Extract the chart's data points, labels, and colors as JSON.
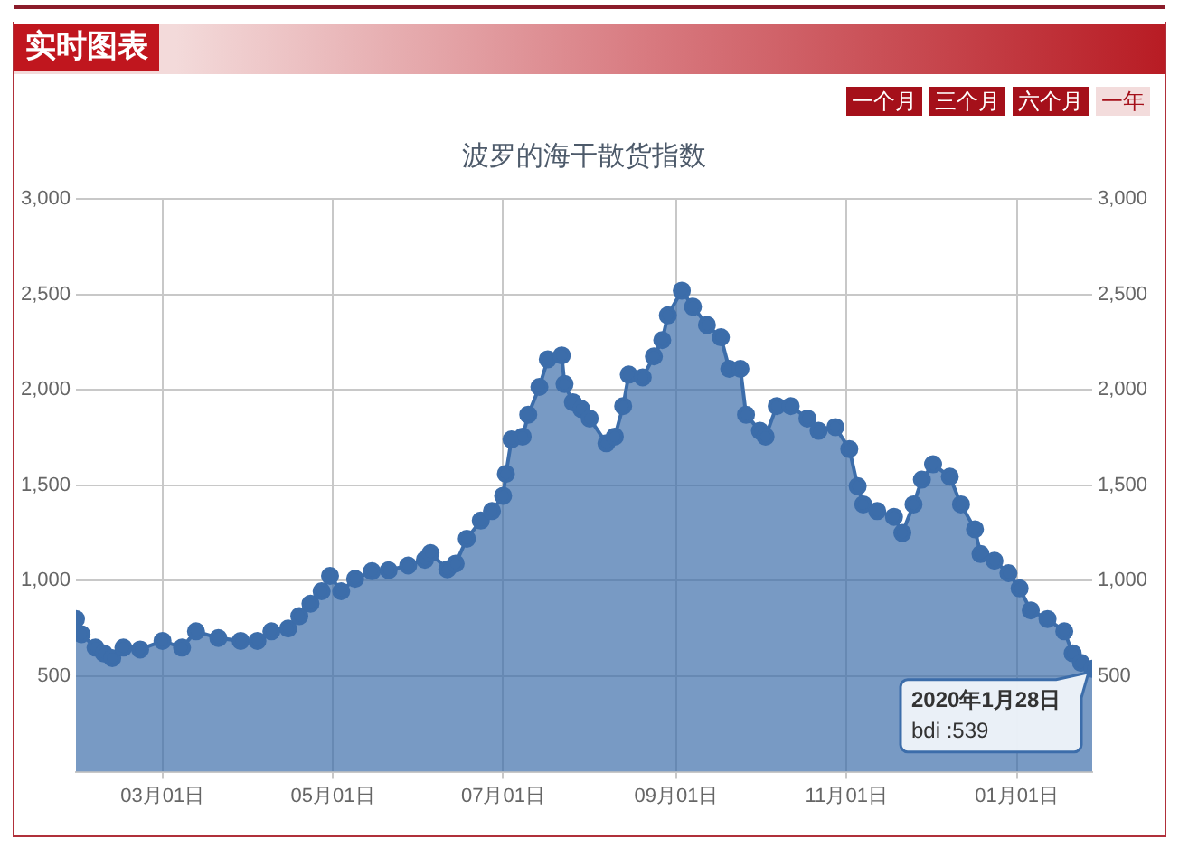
{
  "chart_data": {
    "type": "area",
    "title": "波罗的海干散货指数",
    "x": [
      "2019-01-29",
      "2019-01-31",
      "2019-02-05",
      "2019-02-08",
      "2019-02-11",
      "2019-02-15",
      "2019-02-21",
      "2019-03-01",
      "2019-03-08",
      "2019-03-13",
      "2019-03-21",
      "2019-03-29",
      "2019-04-04",
      "2019-04-09",
      "2019-04-15",
      "2019-04-19",
      "2019-04-23",
      "2019-04-27",
      "2019-04-30",
      "2019-05-04",
      "2019-05-09",
      "2019-05-15",
      "2019-05-21",
      "2019-05-28",
      "2019-06-03",
      "2019-06-05",
      "2019-06-11",
      "2019-06-14",
      "2019-06-18",
      "2019-06-23",
      "2019-06-27",
      "2019-07-01",
      "2019-07-02",
      "2019-07-04",
      "2019-07-08",
      "2019-07-10",
      "2019-07-14",
      "2019-07-17",
      "2019-07-22",
      "2019-07-23",
      "2019-07-26",
      "2019-07-29",
      "2019-08-01",
      "2019-08-07",
      "2019-08-10",
      "2019-08-13",
      "2019-08-15",
      "2019-08-20",
      "2019-08-24",
      "2019-08-27",
      "2019-08-29",
      "2019-09-03",
      "2019-09-07",
      "2019-09-12",
      "2019-09-17",
      "2019-09-20",
      "2019-09-24",
      "2019-09-26",
      "2019-10-01",
      "2019-10-03",
      "2019-10-07",
      "2019-10-12",
      "2019-10-18",
      "2019-10-22",
      "2019-10-28",
      "2019-11-02",
      "2019-11-05",
      "2019-11-07",
      "2019-11-12",
      "2019-11-18",
      "2019-11-21",
      "2019-11-25",
      "2019-11-28",
      "2019-12-02",
      "2019-12-08",
      "2019-12-12",
      "2019-12-17",
      "2019-12-19",
      "2019-12-24",
      "2019-12-29",
      "2020-01-02",
      "2020-01-06",
      "2020-01-12",
      "2020-01-18",
      "2020-01-21",
      "2020-01-24",
      "2020-01-28"
    ],
    "series": [
      {
        "color": "#3c6daa",
        "values": [
          800,
          720,
          650,
          620,
          595,
          650,
          640,
          685,
          650,
          735,
          700,
          685,
          685,
          735,
          750,
          815,
          880,
          945,
          1025,
          945,
          1010,
          1050,
          1055,
          1080,
          1110,
          1145,
          1060,
          1090,
          1220,
          1315,
          1365,
          1445,
          1560,
          1740,
          1755,
          1870,
          2015,
          2160,
          2180,
          2030,
          1935,
          1900,
          1850,
          1720,
          1755,
          1915,
          2080,
          2065,
          2175,
          2260,
          2390,
          2520,
          2435,
          2340,
          2275,
          2110,
          2110,
          1870,
          1785,
          1755,
          1915,
          1915,
          1850,
          1785,
          1805,
          1690,
          1495,
          1400,
          1365,
          1335,
          1250,
          1400,
          1530,
          1610,
          1545,
          1400,
          1270,
          1140,
          1105,
          1040,
          960,
          845,
          800,
          735,
          620,
          570,
          539
        ]
      }
    ],
    "xlim": [
      "2019-01-29",
      "2020-01-28"
    ],
    "xticks": [
      {
        "value": "2019-03-01",
        "label": "03月01日"
      },
      {
        "value": "2019-05-01",
        "label": "05月01日"
      },
      {
        "value": "2019-07-01",
        "label": "07月01日"
      },
      {
        "value": "2019-09-01",
        "label": "09月01日"
      },
      {
        "value": "2019-11-01",
        "label": "11月01日"
      },
      {
        "value": "2020-01-01",
        "label": "01月01日"
      }
    ],
    "ylim": [
      0,
      3000
    ],
    "yticks": [
      {
        "value": 500,
        "label": "500"
      },
      {
        "value": 1000,
        "label": "1,000"
      },
      {
        "value": 1500,
        "label": "1,500"
      },
      {
        "value": 2000,
        "label": "2,000"
      },
      {
        "value": 2500,
        "label": "2,500"
      },
      {
        "value": 3000,
        "label": "3,000"
      }
    ],
    "y2lim": [
      0,
      3000
    ],
    "y2ticks": [
      {
        "value": 500,
        "label": "500"
      },
      {
        "value": 1000,
        "label": "1,000"
      },
      {
        "value": 1500,
        "label": "1,500"
      },
      {
        "value": 2000,
        "label": "2,000"
      },
      {
        "value": 2500,
        "label": "2,500"
      },
      {
        "value": 3000,
        "label": "3,000"
      }
    ],
    "grid": true,
    "legend": false,
    "marker": "circle",
    "annotations": [
      "实时图表",
      "一个月",
      "三个月",
      "六个月",
      "一年",
      {
        "text": "2020年1月28日\nbdi :539",
        "x": "2020-01-28",
        "y": 539
      }
    ]
  }
}
